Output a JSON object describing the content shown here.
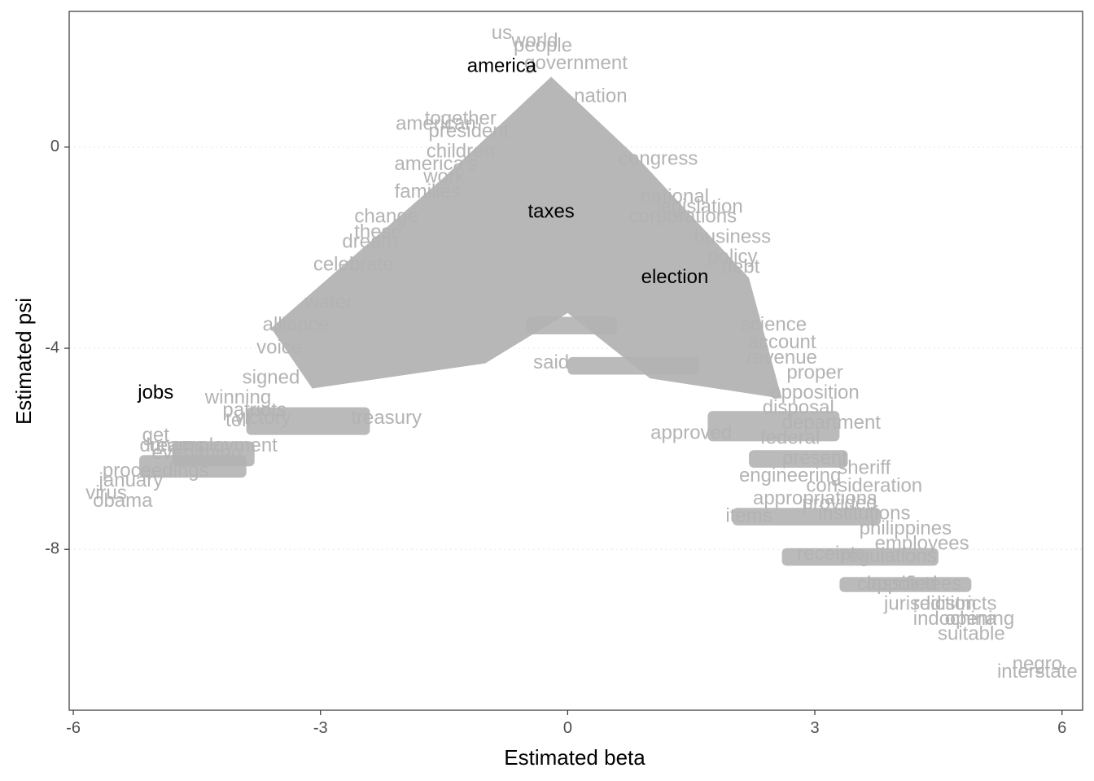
{
  "chart_data": {
    "type": "scatter",
    "xlabel": "Estimated beta",
    "ylabel": "Estimated psi",
    "xlim": [
      -6.05,
      6.25
    ],
    "ylim": [
      -11.2,
      2.7
    ],
    "x_ticks": [
      {
        "value": -6,
        "label": "-6"
      },
      {
        "value": -3,
        "label": "-3"
      },
      {
        "value": 0,
        "label": "0"
      },
      {
        "value": 3,
        "label": "3"
      },
      {
        "value": 6,
        "label": "6"
      }
    ],
    "y_ticks": [
      {
        "value": 0,
        "label": "0"
      },
      {
        "value": -4,
        "label": "-4"
      },
      {
        "value": -8,
        "label": "-8"
      }
    ],
    "grid": {
      "major_y": true,
      "style": "dotted"
    },
    "colors": {
      "word": "#b3b3b3",
      "highlight": "#000000",
      "grid": "#ebebeb",
      "frame": "#333333"
    },
    "highlighted": [
      {
        "label": "america",
        "x": -0.8,
        "y": 1.6
      },
      {
        "label": "taxes",
        "x": -0.2,
        "y": -1.3
      },
      {
        "label": "election",
        "x": 1.3,
        "y": -2.6
      },
      {
        "label": "jobs",
        "x": -5.0,
        "y": -4.9
      }
    ],
    "points": [
      {
        "label": "us",
        "x": -0.8,
        "y": 2.25
      },
      {
        "label": "world",
        "x": -0.4,
        "y": 2.1
      },
      {
        "label": "people",
        "x": -0.3,
        "y": 2.0
      },
      {
        "label": "government",
        "x": 0.1,
        "y": 1.65
      },
      {
        "label": "nation",
        "x": 0.4,
        "y": 1.0
      },
      {
        "label": "together",
        "x": -1.3,
        "y": 0.55
      },
      {
        "label": "american",
        "x": -1.6,
        "y": 0.45
      },
      {
        "label": "president",
        "x": -1.2,
        "y": 0.3
      },
      {
        "label": "children",
        "x": -1.3,
        "y": -0.1
      },
      {
        "label": "america's",
        "x": -1.6,
        "y": -0.35
      },
      {
        "label": "congress",
        "x": 1.1,
        "y": -0.25
      },
      {
        "label": "work",
        "x": -1.5,
        "y": -0.6
      },
      {
        "label": "families",
        "x": -1.7,
        "y": -0.9
      },
      {
        "label": "national",
        "x": 1.3,
        "y": -1.0
      },
      {
        "label": "legislation",
        "x": 1.6,
        "y": -1.2
      },
      {
        "label": "corporations",
        "x": 1.4,
        "y": -1.4
      },
      {
        "label": "change",
        "x": -2.2,
        "y": -1.4
      },
      {
        "label": "these",
        "x": -2.3,
        "y": -1.7
      },
      {
        "label": "dream",
        "x": -2.4,
        "y": -1.9
      },
      {
        "label": "business",
        "x": 2.0,
        "y": -1.8
      },
      {
        "label": "policy",
        "x": 2.0,
        "y": -2.2
      },
      {
        "label": "debt",
        "x": 2.1,
        "y": -2.4
      },
      {
        "label": "celebrate",
        "x": -2.6,
        "y": -2.35
      },
      {
        "label": "water",
        "x": -2.9,
        "y": -3.1
      },
      {
        "label": "alliance",
        "x": -3.3,
        "y": -3.55
      },
      {
        "label": "voice",
        "x": -3.5,
        "y": -4.0
      },
      {
        "label": "science",
        "x": 2.5,
        "y": -3.55
      },
      {
        "label": "account",
        "x": 2.6,
        "y": -3.9
      },
      {
        "label": "revenue",
        "x": 2.6,
        "y": -4.2
      },
      {
        "label": "proper",
        "x": 3.0,
        "y": -4.5
      },
      {
        "label": "signed",
        "x": -3.6,
        "y": -4.6
      },
      {
        "label": "winning",
        "x": -4.0,
        "y": -5.0
      },
      {
        "label": "patriots",
        "x": -3.8,
        "y": -5.25
      },
      {
        "label": "tell",
        "x": -4.0,
        "y": -5.45
      },
      {
        "label": "victory",
        "x": -3.7,
        "y": -5.4
      },
      {
        "label": "opposition",
        "x": 3.0,
        "y": -4.9
      },
      {
        "label": "treasury",
        "x": -2.2,
        "y": -5.4
      },
      {
        "label": "disposal",
        "x": 2.8,
        "y": -5.2
      },
      {
        "label": "said",
        "x": -0.2,
        "y": -4.3
      },
      {
        "label": "department",
        "x": 3.2,
        "y": -5.5
      },
      {
        "label": "approved",
        "x": 1.5,
        "y": -5.7
      },
      {
        "label": "federal",
        "x": 2.7,
        "y": -5.8
      },
      {
        "label": "get",
        "x": -5.0,
        "y": -5.75
      },
      {
        "label": "dreams",
        "x": -4.8,
        "y": -5.95
      },
      {
        "label": "unemployment",
        "x": -4.3,
        "y": -5.95
      },
      {
        "label": "everything",
        "x": -4.5,
        "y": -6.1
      },
      {
        "label": "present",
        "x": 3.0,
        "y": -6.2
      },
      {
        "label": "sheriff",
        "x": 3.6,
        "y": -6.4
      },
      {
        "label": "engineering",
        "x": 2.7,
        "y": -6.55
      },
      {
        "label": "consideration",
        "x": 3.6,
        "y": -6.75
      },
      {
        "label": "proceedings",
        "x": -5.0,
        "y": -6.45
      },
      {
        "label": "january",
        "x": -5.3,
        "y": -6.65
      },
      {
        "label": "virus",
        "x": -5.6,
        "y": -6.9
      },
      {
        "label": "obama",
        "x": -5.4,
        "y": -7.05
      },
      {
        "label": "appropriations",
        "x": 3.0,
        "y": -7.0
      },
      {
        "label": "provided",
        "x": 3.3,
        "y": -7.1
      },
      {
        "label": "institutions",
        "x": 3.6,
        "y": -7.3
      },
      {
        "label": "items",
        "x": 2.2,
        "y": -7.35
      },
      {
        "label": "philippines",
        "x": 4.1,
        "y": -7.6
      },
      {
        "label": "employees",
        "x": 4.3,
        "y": -7.9
      },
      {
        "label": "receipts",
        "x": 3.2,
        "y": -8.1
      },
      {
        "label": "regulations",
        "x": 3.9,
        "y": -8.15
      },
      {
        "label": "classified",
        "x": 4.0,
        "y": -8.7
      },
      {
        "label": "appointees",
        "x": 4.2,
        "y": -8.7
      },
      {
        "label": "jurisdiction",
        "x": 4.4,
        "y": -9.1
      },
      {
        "label": "redistricts",
        "x": 4.7,
        "y": -9.1
      },
      {
        "label": "indochina",
        "x": 4.7,
        "y": -9.4
      },
      {
        "label": "opening",
        "x": 5.0,
        "y": -9.4
      },
      {
        "label": "suitable",
        "x": 4.9,
        "y": -9.7
      },
      {
        "label": "negro",
        "x": 5.7,
        "y": -10.3
      },
      {
        "label": "interstate",
        "x": 5.7,
        "y": -10.45
      }
    ]
  }
}
